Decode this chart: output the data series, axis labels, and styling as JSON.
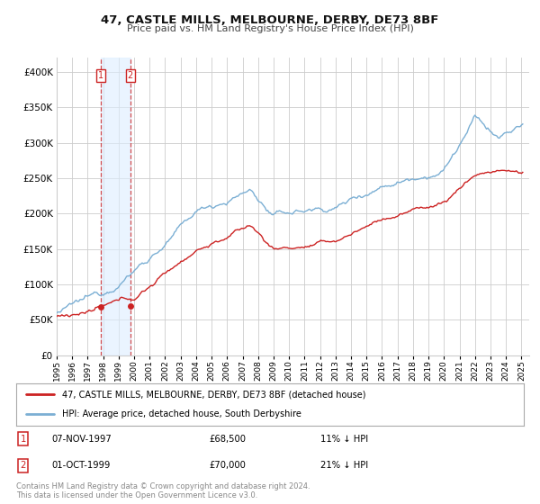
{
  "title": "47, CASTLE MILLS, MELBOURNE, DERBY, DE73 8BF",
  "subtitle": "Price paid vs. HM Land Registry's House Price Index (HPI)",
  "hpi_color": "#7bafd4",
  "price_color": "#cc2222",
  "marker_color": "#cc2222",
  "background_color": "#ffffff",
  "grid_color": "#cccccc",
  "ylim": [
    0,
    420000
  ],
  "xlim_start": 1995.0,
  "xlim_end": 2025.5,
  "yticks": [
    0,
    50000,
    100000,
    150000,
    200000,
    250000,
    300000,
    350000,
    400000
  ],
  "sale1_date": 1997.85,
  "sale1_price": 68500,
  "sale1_label": "07-NOV-1997",
  "sale1_amount": "£68,500",
  "sale1_hpi": "11% ↓ HPI",
  "sale2_date": 1999.75,
  "sale2_price": 70000,
  "sale2_label": "01-OCT-1999",
  "sale2_amount": "£70,000",
  "sale2_hpi": "21% ↓ HPI",
  "legend_line1": "47, CASTLE MILLS, MELBOURNE, DERBY, DE73 8BF (detached house)",
  "legend_line2": "HPI: Average price, detached house, South Derbyshire",
  "footer1": "Contains HM Land Registry data © Crown copyright and database right 2024.",
  "footer2": "This data is licensed under the Open Government Licence v3.0.",
  "shade_color": "#ddeeff"
}
